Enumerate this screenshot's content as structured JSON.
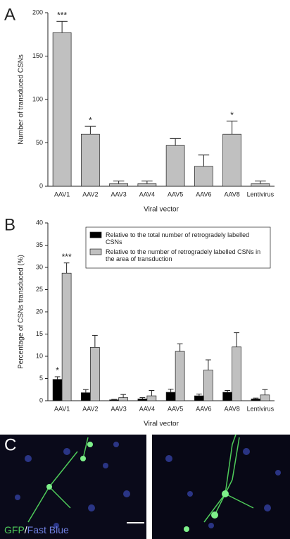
{
  "panel_labels": [
    "A",
    "B",
    "C"
  ],
  "image_caption": {
    "marker": "GFP",
    "separator": "/",
    "tracer": "Fast Blue"
  },
  "chart_data": [
    {
      "type": "bar",
      "xlabel": "Viral vector",
      "ylabel": "Number of transduced CSNs",
      "categories": [
        "AAV1",
        "AAV2",
        "AAV3",
        "AAV4",
        "AAV5",
        "AAV6",
        "AAV8",
        "Lentivirus"
      ],
      "series": [
        {
          "color": "#c0c0c0",
          "values": [
            177,
            60,
            3,
            3,
            47,
            23,
            60,
            3
          ],
          "errors": [
            13,
            9,
            3,
            3,
            8,
            13,
            15,
            3
          ],
          "significance": [
            "***",
            "*",
            null,
            null,
            null,
            null,
            "*",
            null
          ]
        }
      ],
      "ylim": [
        0,
        200
      ],
      "yticks": [
        0,
        50,
        100,
        150,
        200
      ]
    },
    {
      "type": "bar",
      "xlabel": "Viral vector",
      "ylabel": "Percentage of CSNs transduced (%)",
      "categories": [
        "AAV1",
        "AAV2",
        "AAV3",
        "AAV4",
        "AAV5",
        "AAV6",
        "AAV8",
        "Lentivirus"
      ],
      "series": [
        {
          "name": "Relative to the total number of retrogradely labelled CSNs",
          "color": "#000000",
          "values": [
            4.8,
            1.8,
            0.2,
            0.4,
            1.9,
            1.1,
            1.9,
            0.4
          ],
          "errors": [
            0.6,
            0.7,
            0.1,
            0.3,
            0.7,
            0.4,
            0.4,
            0.2
          ],
          "significance": [
            "*",
            null,
            null,
            null,
            null,
            null,
            null,
            null
          ]
        },
        {
          "name": "Relative to the number of retrogradely labelled CSNs in the area of transduction",
          "color": "#c0c0c0",
          "values": [
            28.7,
            12,
            0.7,
            1.1,
            11.1,
            6.9,
            12.1,
            1.3
          ],
          "errors": [
            2.3,
            2.7,
            0.7,
            1.2,
            1.7,
            2.3,
            3.2,
            1.2
          ],
          "significance": [
            "***",
            null,
            null,
            null,
            null,
            null,
            null,
            null
          ]
        }
      ],
      "ylim": [
        0,
        40
      ],
      "yticks": [
        0,
        5,
        10,
        15,
        20,
        25,
        30,
        35,
        40
      ],
      "legend": "upper right"
    }
  ]
}
